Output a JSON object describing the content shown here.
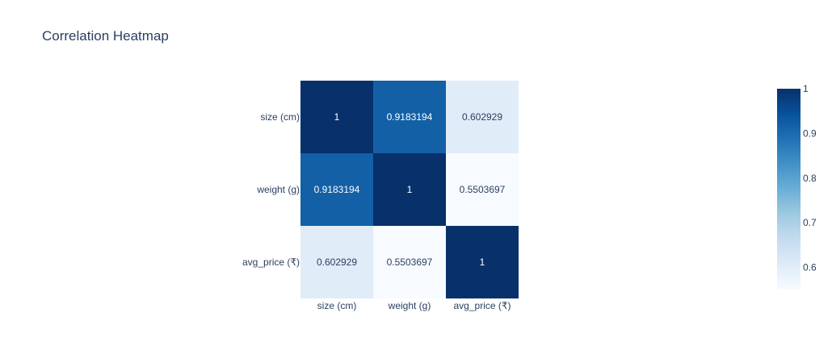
{
  "chart_data": {
    "type": "heatmap",
    "title": "Correlation Heatmap",
    "x_categories": [
      "size (cm)",
      "weight (g)",
      "avg_price (₹)"
    ],
    "y_categories": [
      "size (cm)",
      "weight (g)",
      "avg_price (₹)"
    ],
    "z": [
      [
        1,
        0.9183194,
        0.602929
      ],
      [
        0.9183194,
        1,
        0.5503697
      ],
      [
        0.602929,
        0.5503697,
        1
      ]
    ],
    "text": [
      [
        "1",
        "0.9183194",
        "0.602929"
      ],
      [
        "0.9183194",
        "1",
        "0.5503697"
      ],
      [
        "0.602929",
        "0.5503697",
        "1"
      ]
    ],
    "colorscale": "Blues",
    "zmin": 0.5503697,
    "zmax": 1,
    "colorbar": {
      "ticks": [
        0.6,
        0.7,
        0.8,
        0.9,
        1
      ],
      "tick_labels": [
        "0.6",
        "0.7",
        "0.8",
        "0.9",
        "1"
      ]
    }
  }
}
